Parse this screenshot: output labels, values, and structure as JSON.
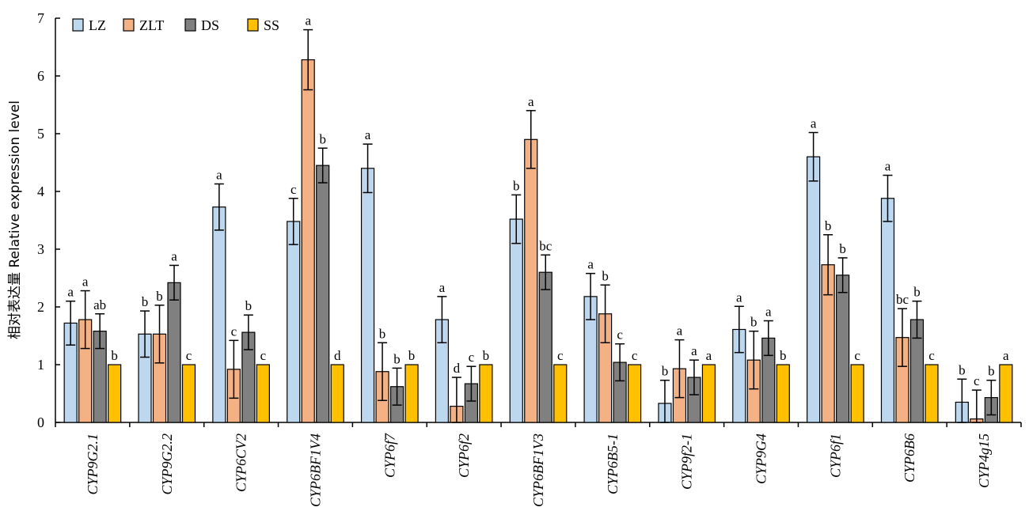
{
  "chart_data": {
    "type": "bar",
    "ylabel": "相对表达量 Relative expression level",
    "xlabel": "",
    "ylim": [
      0,
      7
    ],
    "yticks": [
      0,
      1,
      2,
      3,
      4,
      5,
      6,
      7
    ],
    "legend_position": "top-left",
    "categories": [
      "CYP9G2.1",
      "CYP9G2.2",
      "CYP6CV2",
      "CYP6BF1V4",
      "CYP6f7",
      "CYP6f2",
      "CYP6BF1V3",
      "CYP6B5-1",
      "CYP9f2-1",
      "CYP9G4",
      "CYP6f1",
      "CYP6B6",
      "CYP4g15"
    ],
    "series": [
      {
        "name": "LZ",
        "color": "#BDD7EE",
        "values": [
          1.72,
          1.53,
          3.73,
          3.48,
          4.4,
          1.78,
          3.52,
          2.18,
          0.33,
          1.61,
          4.6,
          3.88,
          0.35
        ],
        "errors": [
          0.38,
          0.4,
          0.4,
          0.4,
          0.42,
          0.4,
          0.42,
          0.4,
          0.4,
          0.4,
          0.42,
          0.4,
          0.4
        ],
        "labels": [
          "a",
          "b",
          "a",
          "c",
          "a",
          "a",
          "b",
          "a",
          "b",
          "a",
          "a",
          "a",
          "b"
        ]
      },
      {
        "name": "ZLT",
        "color": "#F4B183",
        "values": [
          1.78,
          1.53,
          0.92,
          6.28,
          0.88,
          0.28,
          4.9,
          1.88,
          0.93,
          1.08,
          2.73,
          1.47,
          0.06
        ],
        "errors": [
          0.5,
          0.5,
          0.5,
          0.52,
          0.5,
          0.5,
          0.5,
          0.5,
          0.5,
          0.5,
          0.52,
          0.5,
          0.5
        ],
        "labels": [
          "a",
          "b",
          "c",
          "a",
          "b",
          "d",
          "a",
          "b",
          "a",
          "b",
          "b",
          "bc",
          "c"
        ]
      },
      {
        "name": "DS",
        "color": "#808080",
        "values": [
          1.58,
          2.42,
          1.56,
          4.45,
          0.62,
          0.67,
          2.6,
          1.04,
          0.78,
          1.46,
          2.55,
          1.78,
          0.43
        ],
        "errors": [
          0.3,
          0.3,
          0.3,
          0.3,
          0.32,
          0.3,
          0.3,
          0.32,
          0.3,
          0.3,
          0.3,
          0.32,
          0.3
        ],
        "labels": [
          "ab",
          "a",
          "b",
          "b",
          "b",
          "c",
          "bc",
          "c",
          "a",
          "a",
          "b",
          "b",
          "b"
        ]
      },
      {
        "name": "SS",
        "color": "#FFC000",
        "values": [
          1,
          1,
          1,
          1,
          1,
          1,
          1,
          1,
          1,
          1,
          1,
          1,
          1
        ],
        "errors": [
          0,
          0,
          0,
          0,
          0,
          0,
          0,
          0,
          0,
          0,
          0,
          0,
          0
        ],
        "labels": [
          "b",
          "c",
          "c",
          "d",
          "b",
          "b",
          "c",
          "c",
          "a",
          "b",
          "c",
          "c",
          "a"
        ]
      }
    ]
  }
}
